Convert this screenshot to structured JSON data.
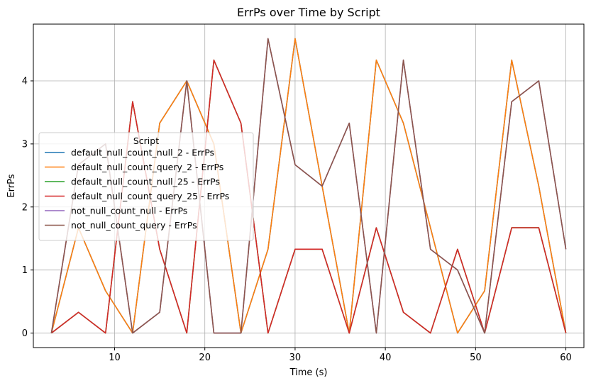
{
  "chart_data": {
    "type": "line",
    "title": "ErrPs over Time by Script",
    "xlabel": "Time (s)",
    "ylabel": "ErrPs",
    "xlim": [
      1,
      62
    ],
    "ylim": [
      -0.23,
      4.9
    ],
    "xticks": [
      10,
      20,
      30,
      40,
      50,
      60
    ],
    "yticks": [
      0,
      1,
      2,
      3,
      4
    ],
    "grid": true,
    "legend_title": "Script",
    "legend_position": "center-left",
    "x": [
      3,
      6,
      9,
      12,
      15,
      18,
      21,
      24,
      27,
      30,
      33,
      36,
      39,
      42,
      45,
      48,
      51,
      54,
      57,
      60
    ],
    "series": [
      {
        "name": "default_null_count_null_2 - ErrPs",
        "color": "#1f77b4",
        "values": [
          0,
          1.67,
          0.67,
          0,
          3.33,
          4,
          3,
          0,
          1.33,
          4.67,
          2.33,
          0,
          4.33,
          3.33,
          1.67,
          0,
          0.67,
          4.33,
          2.33,
          0
        ]
      },
      {
        "name": "default_null_count_query_2 - ErrPs",
        "color": "#ff7f0e",
        "values": [
          0,
          1.67,
          0.67,
          0,
          3.33,
          4,
          3,
          0,
          1.33,
          4.67,
          2.33,
          0,
          4.33,
          3.33,
          1.67,
          0,
          0.67,
          4.33,
          2.33,
          0
        ]
      },
      {
        "name": "default_null_count_null_25 - ErrPs",
        "color": "#2ca02c",
        "values": [
          0,
          0.33,
          0,
          3.67,
          1.33,
          0,
          4.33,
          3.33,
          0,
          1.33,
          1.33,
          0,
          1.67,
          0.33,
          0,
          1.33,
          0,
          1.67,
          1.67,
          0
        ]
      },
      {
        "name": "default_null_count_query_25 - ErrPs",
        "color": "#d62728",
        "values": [
          0,
          0.33,
          0,
          3.67,
          1.33,
          0,
          4.33,
          3.33,
          0,
          1.33,
          1.33,
          0,
          1.67,
          0.33,
          0,
          1.33,
          0,
          1.67,
          1.67,
          0
        ]
      },
      {
        "name": "not_null_count_null - ErrPs",
        "color": "#9467bd",
        "values": [
          0,
          2.67,
          3,
          0,
          0.33,
          4,
          0,
          0,
          4.67,
          2.67,
          2.33,
          3.33,
          0,
          4.33,
          1.33,
          1,
          0,
          3.67,
          4,
          1.33
        ]
      },
      {
        "name": "not_null_count_query - ErrPs",
        "color": "#8c564b",
        "values": [
          0,
          2.67,
          3,
          0,
          0.33,
          4,
          0,
          0,
          4.67,
          2.67,
          2.33,
          3.33,
          0,
          4.33,
          1.33,
          1,
          0,
          3.67,
          4,
          1.33
        ]
      }
    ]
  }
}
